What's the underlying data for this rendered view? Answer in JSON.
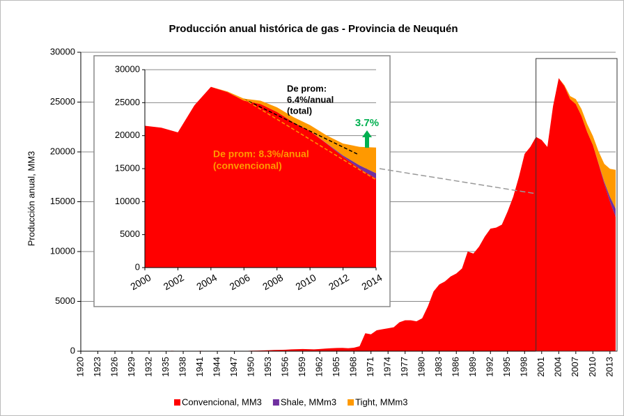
{
  "chart_data": [
    {
      "type": "area",
      "title": "Producción anual histórica de gas - Provincia de Neuquén",
      "y_label": "Producción anual, MM3",
      "x": [
        1920,
        1921,
        1922,
        1923,
        1924,
        1925,
        1926,
        1927,
        1928,
        1929,
        1930,
        1931,
        1932,
        1933,
        1934,
        1935,
        1936,
        1937,
        1938,
        1939,
        1940,
        1941,
        1942,
        1943,
        1944,
        1945,
        1946,
        1947,
        1948,
        1949,
        1950,
        1951,
        1952,
        1953,
        1954,
        1955,
        1956,
        1957,
        1958,
        1959,
        1960,
        1961,
        1962,
        1963,
        1964,
        1965,
        1966,
        1967,
        1968,
        1969,
        1970,
        1971,
        1972,
        1973,
        1974,
        1975,
        1976,
        1977,
        1978,
        1979,
        1980,
        1981,
        1982,
        1983,
        1984,
        1985,
        1986,
        1987,
        1988,
        1989,
        1990,
        1991,
        1992,
        1993,
        1994,
        1995,
        1996,
        1997,
        1998,
        1999,
        2000,
        2001,
        2002,
        2003,
        2004,
        2005,
        2006,
        2007,
        2008,
        2009,
        2010,
        2011,
        2012,
        2013,
        2014
      ],
      "series": [
        {
          "name": "Convencional, MM3",
          "color": "#ff0000",
          "values": [
            0,
            0,
            0,
            0,
            0,
            0,
            0,
            0,
            0,
            0,
            0,
            0,
            0,
            0,
            0,
            20,
            40,
            30,
            20,
            20,
            30,
            40,
            30,
            30,
            20,
            20,
            20,
            20,
            30,
            30,
            50,
            60,
            80,
            100,
            120,
            130,
            150,
            180,
            200,
            220,
            200,
            180,
            220,
            260,
            300,
            320,
            330,
            300,
            350,
            500,
            1800,
            1700,
            2100,
            2200,
            2300,
            2400,
            2900,
            3100,
            3100,
            3000,
            3300,
            4500,
            6000,
            6700,
            7000,
            7500,
            7800,
            8300,
            10000,
            9800,
            10500,
            11500,
            12300,
            12400,
            12700,
            14000,
            15500,
            17500,
            19800,
            20500,
            21500,
            21200,
            20500,
            24600,
            27400,
            26600,
            25300,
            24800,
            23600,
            22000,
            20700,
            18800,
            16800,
            15000,
            13500
          ]
        },
        {
          "name": "Shale, MMm3",
          "color": "#7030a0",
          "values": [
            0,
            0,
            0,
            0,
            0,
            0,
            0,
            0,
            0,
            0,
            0,
            0,
            0,
            0,
            0,
            0,
            0,
            0,
            0,
            0,
            0,
            0,
            0,
            0,
            0,
            0,
            0,
            0,
            0,
            0,
            0,
            0,
            0,
            0,
            0,
            0,
            0,
            0,
            0,
            0,
            0,
            0,
            0,
            0,
            0,
            0,
            0,
            0,
            0,
            0,
            0,
            0,
            0,
            0,
            0,
            0,
            0,
            0,
            0,
            0,
            0,
            0,
            0,
            0,
            0,
            0,
            0,
            0,
            0,
            0,
            0,
            0,
            0,
            0,
            0,
            0,
            0,
            0,
            0,
            0,
            0,
            0,
            0,
            0,
            0,
            0,
            0,
            0,
            0,
            0,
            0,
            50,
            200,
            500,
            800
          ]
        },
        {
          "name": "Tight, MMm3",
          "color": "#ff9900",
          "values": [
            0,
            0,
            0,
            0,
            0,
            0,
            0,
            0,
            0,
            0,
            0,
            0,
            0,
            0,
            0,
            0,
            0,
            0,
            0,
            0,
            0,
            0,
            0,
            0,
            0,
            0,
            0,
            0,
            0,
            0,
            0,
            0,
            0,
            0,
            0,
            0,
            0,
            0,
            0,
            0,
            0,
            0,
            0,
            0,
            0,
            0,
            0,
            0,
            0,
            0,
            0,
            0,
            0,
            0,
            0,
            0,
            0,
            0,
            0,
            0,
            0,
            0,
            0,
            0,
            0,
            0,
            0,
            0,
            0,
            0,
            0,
            0,
            0,
            0,
            0,
            0,
            0,
            0,
            0,
            0,
            0,
            0,
            0,
            0,
            0,
            100,
            300,
            500,
            700,
            800,
            900,
            1200,
            1800,
            2800,
            3900
          ]
        }
      ],
      "xlim": [
        1920,
        2014
      ],
      "xticks": [
        1920,
        1923,
        1926,
        1929,
        1932,
        1935,
        1938,
        1941,
        1944,
        1947,
        1950,
        1953,
        1956,
        1959,
        1962,
        1965,
        1968,
        1971,
        1974,
        1977,
        1980,
        1983,
        1986,
        1989,
        1992,
        1995,
        1998,
        2001,
        2004,
        2007,
        2010,
        2013
      ],
      "ylim": [
        0,
        30000
      ],
      "yticks": [
        0,
        5000,
        10000,
        15000,
        20000,
        25000,
        30000
      ],
      "grid": true
    },
    {
      "type": "area-inset",
      "xlim": [
        2000,
        2014
      ],
      "xticks": [
        2000,
        2002,
        2004,
        2006,
        2008,
        2010,
        2012,
        2014
      ],
      "ylim": [
        0,
        30000
      ],
      "yticks": [
        0,
        5000,
        10000,
        15000,
        20000,
        25000,
        30000
      ],
      "grid": true,
      "annotation_total": [
        "De prom:",
        "6.4%/anual",
        "(total)"
      ],
      "annotation_increase": "3.7%",
      "annotation_conventional": [
        "De prom: 8.3%/anual",
        "(convencional)"
      ]
    }
  ]
}
